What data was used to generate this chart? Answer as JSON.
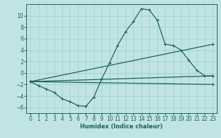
{
  "xlabel": "Humidex (Indice chaleur)",
  "background_color": "#c0e4e4",
  "grid_color": "#a0cccc",
  "line_color": "#1a6060",
  "xlim": [
    -0.5,
    23.5
  ],
  "ylim": [
    -7,
    12
  ],
  "yticks": [
    -6,
    -4,
    -2,
    0,
    2,
    4,
    6,
    8,
    10
  ],
  "xticks": [
    0,
    1,
    2,
    3,
    4,
    5,
    6,
    7,
    8,
    9,
    10,
    11,
    12,
    13,
    14,
    15,
    16,
    17,
    18,
    19,
    20,
    21,
    22,
    23
  ],
  "series": [
    {
      "x": [
        0,
        1,
        2,
        3,
        4,
        5,
        6,
        7,
        8,
        9,
        10,
        11,
        12,
        13,
        14,
        15,
        16,
        17,
        18,
        19,
        20,
        21,
        22,
        23
      ],
      "y": [
        -1.5,
        -2.2,
        -2.8,
        -3.4,
        -4.5,
        -5.0,
        -5.7,
        -5.8,
        -4.2,
        -1.0,
        1.8,
        4.8,
        7.2,
        9.0,
        11.2,
        11.0,
        9.2,
        5.0,
        4.8,
        4.0,
        2.2,
        0.5,
        -0.5,
        -0.5
      ]
    },
    {
      "x": [
        0,
        23
      ],
      "y": [
        -1.5,
        -0.5
      ]
    },
    {
      "x": [
        0,
        23
      ],
      "y": [
        -1.5,
        5.0
      ]
    },
    {
      "x": [
        0,
        23
      ],
      "y": [
        -1.5,
        -2.0
      ]
    }
  ]
}
